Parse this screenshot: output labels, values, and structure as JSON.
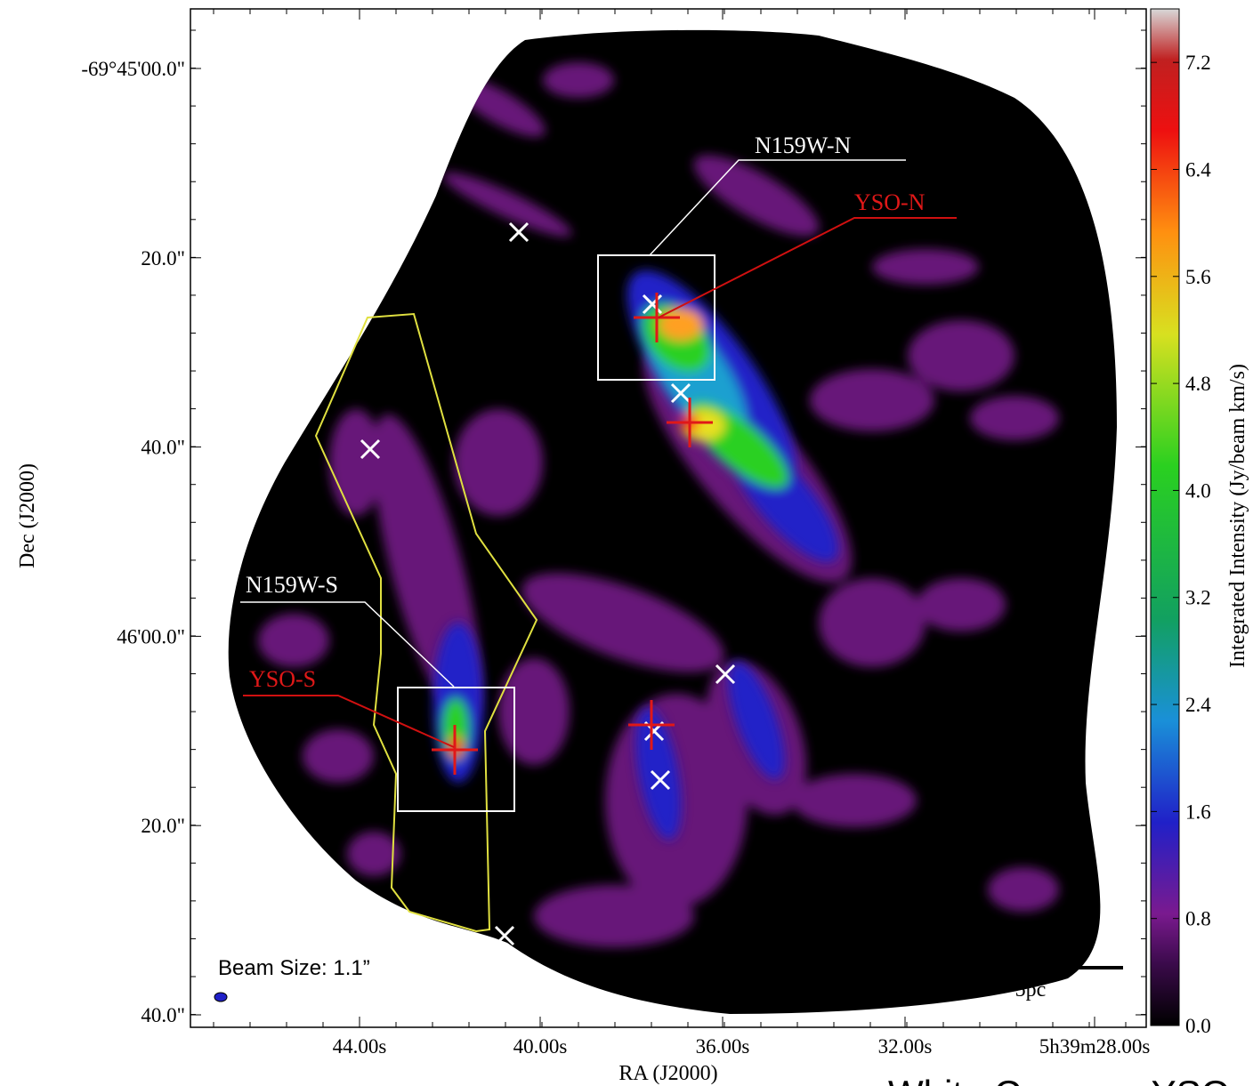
{
  "figure": {
    "x_axis": {
      "label": "RA (J2000)",
      "ticks": [
        "44.00s",
        "40.00s",
        "36.00s",
        "32.00s",
        "5h39m28.00s"
      ]
    },
    "y_axis": {
      "label": "Dec (J2000)",
      "ticks": [
        "-69°45'00.0\"",
        "20.0\"",
        "40.0\"",
        "46'00.0\"",
        "20.0\"",
        "40.0\""
      ]
    },
    "colorbar": {
      "label": "Integrated Intensity (Jy/beam km/s)",
      "range": [
        0,
        7.6
      ],
      "ticks": [
        {
          "value": 0,
          "label": "0.0"
        },
        {
          "value": 0.8,
          "label": "0.8"
        },
        {
          "value": 1.6,
          "label": "1.6"
        },
        {
          "value": 2.4,
          "label": "2.4"
        },
        {
          "value": 3.2,
          "label": "3.2"
        },
        {
          "value": 4.0,
          "label": "4.0"
        },
        {
          "value": 4.8,
          "label": "4.8"
        },
        {
          "value": 5.6,
          "label": "5.6"
        },
        {
          "value": 6.4,
          "label": "6.4"
        },
        {
          "value": 7.2,
          "label": "7.2"
        }
      ]
    },
    "annotations": {
      "region_n": "N159W-N",
      "yso_n": "YSO-N",
      "region_s": "N159W-S",
      "yso_s": "YSO-S"
    },
    "beam": "Beam Size: 1.1”",
    "scale_bar": "5pc",
    "caption": "White Crosses: YSO"
  }
}
